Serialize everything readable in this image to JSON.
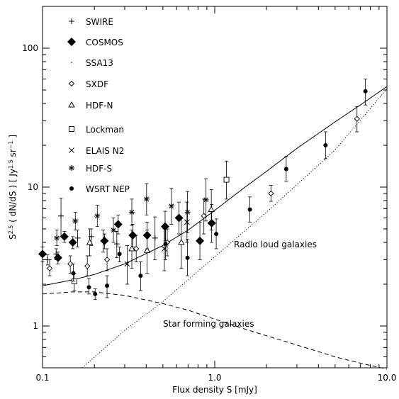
{
  "chart_data": {
    "type": "scatter",
    "xlabel": "Flux density S [mJy]",
    "ylabel_parts": [
      "S",
      "2.5",
      " ( dN/dS ) [ Jy",
      "1.5",
      " sr",
      "−1",
      " ]"
    ],
    "xscale": "log",
    "yscale": "log",
    "xlim": [
      0.1,
      10.0
    ],
    "ylim": [
      0.5,
      200
    ],
    "x_ticks": [
      0.1,
      1.0,
      10.0
    ],
    "x_tick_labels": [
      "0.1",
      "1.0",
      "10.0"
    ],
    "y_ticks": [
      1,
      10,
      100
    ],
    "y_tick_labels": [
      "1",
      "10",
      "100"
    ],
    "legend_position": "top-left",
    "series": [
      {
        "name": "SWIRE",
        "marker": "plus",
        "points": [
          {
            "x": 0.107,
            "y": 3.0,
            "lo": 2.75,
            "hi": 3.25
          },
          {
            "x": 0.12,
            "y": 3.3,
            "lo": 3.0,
            "hi": 3.6
          },
          {
            "x": 0.128,
            "y": 6.2,
            "lo": 4.4,
            "hi": 8.3
          },
          {
            "x": 0.16,
            "y": 4.3,
            "lo": 3.7,
            "hi": 4.9
          },
          {
            "x": 0.192,
            "y": 4.4,
            "lo": 3.8,
            "hi": 5.0
          },
          {
            "x": 0.225,
            "y": 4.1,
            "lo": 3.4,
            "hi": 4.9
          },
          {
            "x": 0.27,
            "y": 3.9,
            "lo": 3.1,
            "hi": 4.8
          },
          {
            "x": 0.45,
            "y": 4.3,
            "lo": 3.0,
            "hi": 6.1
          }
        ]
      },
      {
        "name": "COSMOS",
        "marker": "filled-diamond",
        "points": [
          {
            "x": 0.1,
            "y": 3.3,
            "lo": 2.9,
            "hi": 3.7
          },
          {
            "x": 0.123,
            "y": 3.1,
            "lo": 2.8,
            "hi": 3.4
          },
          {
            "x": 0.134,
            "y": 4.4,
            "lo": 4.0,
            "hi": 4.8
          },
          {
            "x": 0.15,
            "y": 4.0,
            "lo": 3.6,
            "hi": 4.4
          },
          {
            "x": 0.229,
            "y": 4.1,
            "lo": 3.6,
            "hi": 4.6
          },
          {
            "x": 0.275,
            "y": 5.4,
            "lo": 4.6,
            "hi": 6.3
          },
          {
            "x": 0.334,
            "y": 4.5,
            "lo": 3.7,
            "hi": 5.4
          },
          {
            "x": 0.405,
            "y": 4.5,
            "lo": 3.6,
            "hi": 5.6
          },
          {
            "x": 0.515,
            "y": 5.2,
            "lo": 4.1,
            "hi": 6.7
          },
          {
            "x": 0.62,
            "y": 6.0,
            "lo": 4.6,
            "hi": 7.8
          },
          {
            "x": 0.82,
            "y": 4.1,
            "lo": 3.0,
            "hi": 5.6
          },
          {
            "x": 0.96,
            "y": 5.5,
            "lo": 4.0,
            "hi": 7.5
          }
        ]
      },
      {
        "name": "SSA13",
        "marker": "dot",
        "points": []
      },
      {
        "name": "SXDF",
        "marker": "open-diamond",
        "points": [
          {
            "x": 0.11,
            "y": 2.6,
            "lo": 2.3,
            "hi": 3.0
          },
          {
            "x": 0.145,
            "y": 2.8,
            "lo": 2.4,
            "hi": 3.2
          },
          {
            "x": 0.182,
            "y": 2.7,
            "lo": 2.3,
            "hi": 3.2
          },
          {
            "x": 0.237,
            "y": 3.0,
            "lo": 2.5,
            "hi": 3.6
          },
          {
            "x": 0.35,
            "y": 3.6,
            "lo": 2.9,
            "hi": 4.5
          },
          {
            "x": 0.53,
            "y": 4.0,
            "lo": 3.2,
            "hi": 5.0
          },
          {
            "x": 0.865,
            "y": 6.2,
            "lo": 4.6,
            "hi": 8.2
          },
          {
            "x": 2.12,
            "y": 9.0,
            "lo": 7.9,
            "hi": 10.3
          },
          {
            "x": 6.7,
            "y": 31.0,
            "lo": 25.0,
            "hi": 38.0
          }
        ]
      },
      {
        "name": "HDF-N",
        "marker": "triangle",
        "points": [
          {
            "x": 0.188,
            "y": 4.0,
            "lo": 3.2,
            "hi": 5.0
          },
          {
            "x": 0.33,
            "y": 3.6,
            "lo": 2.6,
            "hi": 4.9
          },
          {
            "x": 0.405,
            "y": 3.5,
            "lo": 2.4,
            "hi": 4.9
          },
          {
            "x": 0.64,
            "y": 4.0,
            "lo": 2.6,
            "hi": 6.0
          },
          {
            "x": 0.955,
            "y": 6.9,
            "lo": 4.9,
            "hi": 9.6
          }
        ]
      },
      {
        "name": "Lockman",
        "marker": "square",
        "points": [
          {
            "x": 0.153,
            "y": 2.1,
            "lo": 1.8,
            "hi": 2.4
          },
          {
            "x": 1.17,
            "y": 11.3,
            "lo": 8.2,
            "hi": 15.4
          }
        ]
      },
      {
        "name": "ELAIS N2",
        "marker": "cross",
        "points": [
          {
            "x": 0.31,
            "y": 2.8,
            "lo": 2.0,
            "hi": 3.8
          },
          {
            "x": 0.51,
            "y": 3.6,
            "lo": 2.5,
            "hi": 5.0
          },
          {
            "x": 0.69,
            "y": 5.6,
            "lo": 4.0,
            "hi": 7.8
          }
        ]
      },
      {
        "name": "HDF-S",
        "marker": "asterisk",
        "points": [
          {
            "x": 0.121,
            "y": 4.3,
            "lo": 3.8,
            "hi": 4.9
          },
          {
            "x": 0.155,
            "y": 5.7,
            "lo": 4.9,
            "hi": 6.6
          },
          {
            "x": 0.208,
            "y": 6.2,
            "lo": 5.2,
            "hi": 7.4
          },
          {
            "x": 0.258,
            "y": 4.9,
            "lo": 4.0,
            "hi": 6.0
          },
          {
            "x": 0.33,
            "y": 6.6,
            "lo": 5.3,
            "hi": 8.2
          },
          {
            "x": 0.402,
            "y": 8.2,
            "lo": 6.3,
            "hi": 10.6
          },
          {
            "x": 0.56,
            "y": 7.3,
            "lo": 5.4,
            "hi": 9.8
          },
          {
            "x": 0.695,
            "y": 6.6,
            "lo": 4.7,
            "hi": 9.3
          },
          {
            "x": 0.89,
            "y": 8.1,
            "lo": 5.7,
            "hi": 11.5
          }
        ]
      },
      {
        "name": "WSRT NEP",
        "marker": "filled-circle",
        "points": [
          {
            "x": 0.151,
            "y": 2.4,
            "lo": 2.1,
            "hi": 2.8
          },
          {
            "x": 0.186,
            "y": 1.9,
            "lo": 1.7,
            "hi": 2.2
          },
          {
            "x": 0.202,
            "y": 1.7,
            "lo": 1.55,
            "hi": 1.85
          },
          {
            "x": 0.237,
            "y": 1.95,
            "lo": 1.6,
            "hi": 2.3
          },
          {
            "x": 0.28,
            "y": 3.3,
            "lo": 2.9,
            "hi": 3.7
          },
          {
            "x": 0.371,
            "y": 2.3,
            "lo": 1.8,
            "hi": 2.9
          },
          {
            "x": 0.518,
            "y": 3.9,
            "lo": 3.0,
            "hi": 5.0
          },
          {
            "x": 0.695,
            "y": 3.1,
            "lo": 2.3,
            "hi": 4.2
          },
          {
            "x": 1.02,
            "y": 4.6,
            "lo": 3.6,
            "hi": 5.9
          },
          {
            "x": 1.6,
            "y": 6.9,
            "lo": 5.6,
            "hi": 8.5
          },
          {
            "x": 2.6,
            "y": 13.5,
            "lo": 11.0,
            "hi": 16.6
          },
          {
            "x": 4.4,
            "y": 20.0,
            "lo": 16.0,
            "hi": 25.0
          },
          {
            "x": 7.5,
            "y": 49.0,
            "lo": 39.0,
            "hi": 60.0
          }
        ]
      }
    ],
    "model_curves": [
      {
        "style": "solid",
        "x": [
          0.1,
          0.15,
          0.2,
          0.3,
          0.5,
          0.7,
          1.0,
          1.5,
          2.0,
          3.0,
          5.0,
          7.0,
          10.0
        ],
        "y": [
          1.95,
          2.15,
          2.35,
          2.8,
          3.8,
          4.9,
          6.8,
          10.0,
          13.0,
          19.0,
          29.5,
          39.0,
          53.0
        ]
      },
      {
        "style": "dotted",
        "x": [
          0.17,
          0.3,
          0.5,
          1.0,
          2.0,
          5.0,
          10.0
        ],
        "y": [
          0.5,
          0.93,
          1.5,
          3.15,
          6.6,
          18.5,
          51.0
        ]
      },
      {
        "style": "dashed",
        "x": [
          0.1,
          0.15,
          0.2,
          0.3,
          0.5,
          0.7,
          1.0,
          1.5,
          2.0,
          3.0,
          5.0,
          7.0,
          10.0
        ],
        "y": [
          1.7,
          1.76,
          1.76,
          1.66,
          1.45,
          1.3,
          1.12,
          0.95,
          0.85,
          0.73,
          0.6,
          0.54,
          0.49
        ]
      }
    ],
    "annotations": [
      "Radio loud galaxies",
      "Star forming galaxies"
    ]
  }
}
